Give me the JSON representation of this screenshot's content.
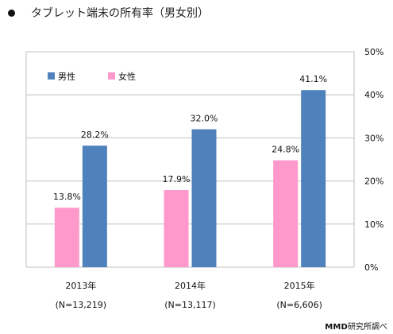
{
  "title": "タブレット端末の所有率（男女別）",
  "source": {
    "brand": "MMD",
    "text": "研究所調べ"
  },
  "chart_data": {
    "type": "bar",
    "title": "タブレット端末の所有率（男女別）",
    "categories": [
      "2013年",
      "2014年",
      "2015年"
    ],
    "category_notes": [
      "(N=13,219)",
      "(N=13,117)",
      "(N=6,606)"
    ],
    "series": [
      {
        "name": "女性",
        "values": [
          13.8,
          17.9,
          24.8
        ],
        "labels": [
          "13.8%",
          "17.9%",
          "24.8%"
        ],
        "color": "#ff99cc"
      },
      {
        "name": "男性",
        "values": [
          28.2,
          32.0,
          41.1
        ],
        "labels": [
          "28.2%",
          "32.0%",
          "41.1%"
        ],
        "color": "#4f81bd"
      }
    ],
    "legend_order": [
      "男性",
      "女性"
    ],
    "legend_position": "top-left",
    "ylim": [
      0,
      50
    ],
    "yticks": [
      0,
      10,
      20,
      30,
      40,
      50
    ],
    "ytick_labels": [
      "0%",
      "10%",
      "20%",
      "30%",
      "40%",
      "50%"
    ],
    "y_axis_side": "right",
    "grid": true,
    "colors": {
      "female": "#ff99cc",
      "male": "#4f81bd",
      "grid": "#bfbfbf"
    }
  }
}
